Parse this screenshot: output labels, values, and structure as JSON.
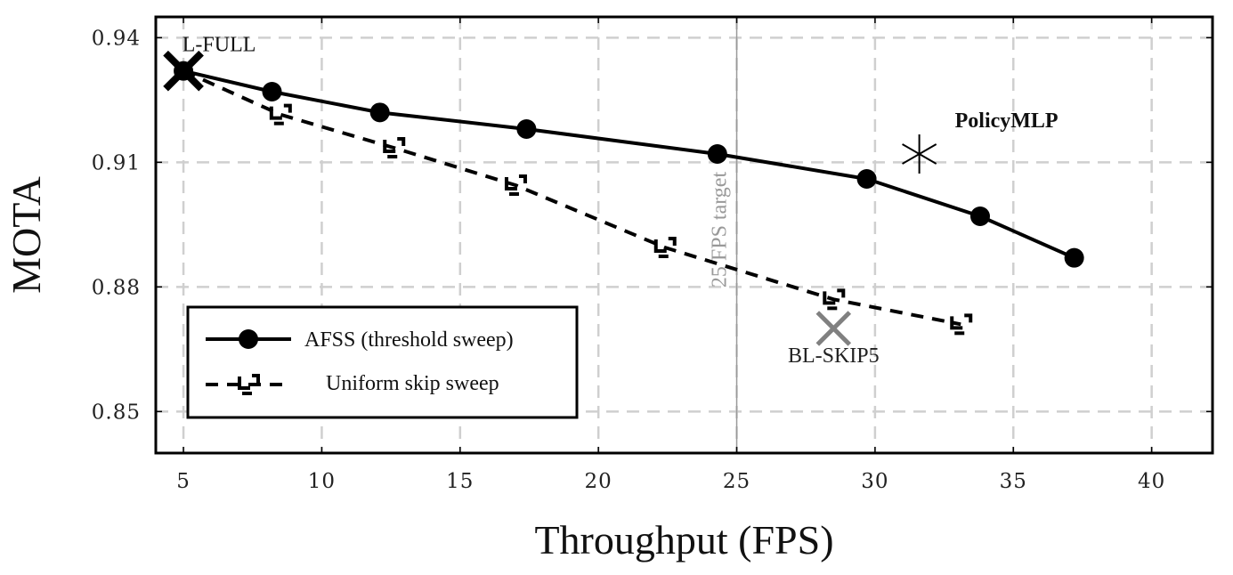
{
  "chart_data": {
    "type": "line",
    "xlabel": "Throughput (FPS)",
    "ylabel": "MOTA",
    "xlim": [
      4,
      42.2
    ],
    "ylim": [
      0.84,
      0.945
    ],
    "xticks": [
      5,
      10,
      15,
      20,
      25,
      30,
      35,
      40
    ],
    "yticks": [
      0.85,
      0.88,
      0.91,
      0.94
    ],
    "xtick_labels": [
      "5",
      "10",
      "15",
      "20",
      "25",
      "30",
      "35",
      "40"
    ],
    "ytick_labels": [
      "0.85",
      "0.88",
      "0.91",
      "0.94"
    ],
    "grid": true,
    "legend_position": "lower-left",
    "series": [
      {
        "name": "AFSS (threshold sweep)",
        "style": "solid",
        "marker": "circle",
        "color": "#000000",
        "x": [
          5.0,
          8.2,
          12.1,
          17.4,
          24.3,
          29.7,
          33.8,
          37.2
        ],
        "y": [
          0.932,
          0.927,
          0.922,
          0.918,
          0.912,
          0.906,
          0.897,
          0.887
        ]
      },
      {
        "name": "Uniform skip sweep",
        "style": "dashed",
        "marker": "uniform-skip",
        "color": "#000000",
        "x": [
          5.0,
          8.5,
          12.6,
          17.0,
          22.4,
          28.5,
          33.1
        ],
        "y": [
          0.932,
          0.9215,
          0.9135,
          0.9045,
          0.8895,
          0.877,
          0.871
        ]
      }
    ],
    "annotations": [
      {
        "text": "L-FULL",
        "x": 5.0,
        "y": 0.932,
        "marker": "x",
        "color": "#000000"
      },
      {
        "text": "PolicyMLP",
        "x": 31.6,
        "y": 0.912,
        "marker": "asterisk",
        "color": "#000000"
      },
      {
        "text": "BL-SKIP5",
        "x": 28.5,
        "y": 0.87,
        "marker": "x",
        "color": "#808080"
      }
    ],
    "reference_lines": [
      {
        "axis": "x",
        "value": 25,
        "label": "25 FPS target",
        "color": "#999999"
      }
    ]
  }
}
